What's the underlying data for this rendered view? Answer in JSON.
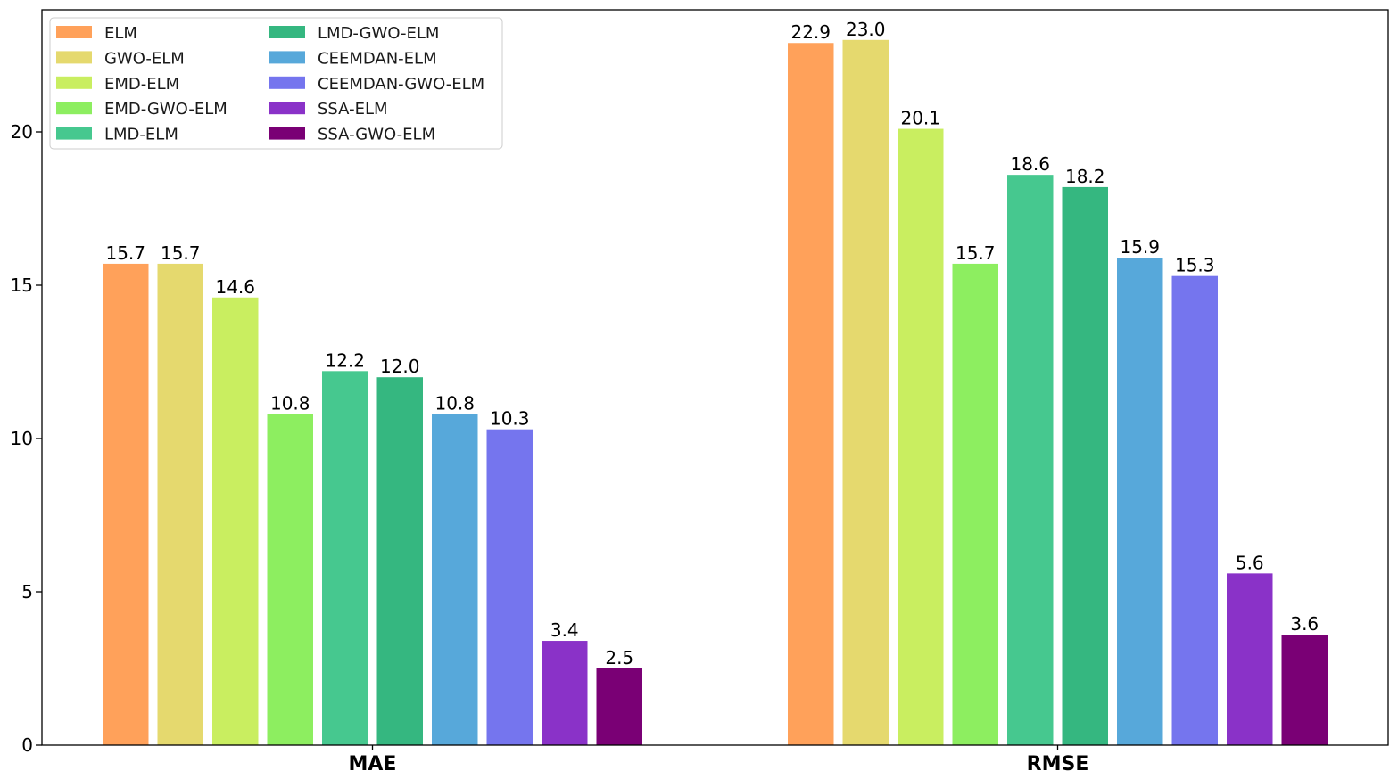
{
  "chart_data": {
    "type": "bar",
    "title": "",
    "xlabel": "",
    "ylabel": "",
    "categories": [
      "MAE",
      "RMSE"
    ],
    "ylim": [
      0,
      24
    ],
    "yticks": [
      0,
      5,
      10,
      15,
      20
    ],
    "grid": false,
    "legend_position": "top-left",
    "legend_columns": 2,
    "series": [
      {
        "name": "ELM",
        "color": "#FFA15A",
        "values": [
          15.7,
          22.9
        ],
        "labels": [
          "15.7",
          "22.9"
        ]
      },
      {
        "name": "GWO-ELM",
        "color": "#E5D96E",
        "values": [
          15.7,
          23.0
        ],
        "labels": [
          "15.7",
          "23.0"
        ]
      },
      {
        "name": "EMD-ELM",
        "color": "#C9EE60",
        "values": [
          14.6,
          20.1
        ],
        "labels": [
          "14.6",
          "20.1"
        ]
      },
      {
        "name": "EMD-GWO-ELM",
        "color": "#8DEE60",
        "values": [
          10.8,
          15.7
        ],
        "labels": [
          "10.8",
          "15.7"
        ]
      },
      {
        "name": "LMD-ELM",
        "color": "#46C88F",
        "values": [
          12.2,
          18.6
        ],
        "labels": [
          "12.2",
          "18.6"
        ]
      },
      {
        "name": "LMD-GWO-ELM",
        "color": "#35B780",
        "values": [
          12.0,
          18.2
        ],
        "labels": [
          "12.0",
          "18.2"
        ]
      },
      {
        "name": "CEEMDAN-ELM",
        "color": "#57A8DA",
        "values": [
          10.8,
          15.9
        ],
        "labels": [
          "10.8",
          "15.9"
        ]
      },
      {
        "name": "CEEMDAN-GWO-ELM",
        "color": "#7575EE",
        "values": [
          10.3,
          15.3
        ],
        "labels": [
          "10.3",
          "15.3"
        ]
      },
      {
        "name": "SSA-ELM",
        "color": "#8A32C8",
        "values": [
          3.4,
          5.6
        ],
        "labels": [
          "3.4",
          "5.6"
        ]
      },
      {
        "name": "SSA-GWO-ELM",
        "color": "#7A0075",
        "values": [
          2.5,
          3.6
        ],
        "labels": [
          "2.5",
          "3.6"
        ]
      }
    ]
  }
}
